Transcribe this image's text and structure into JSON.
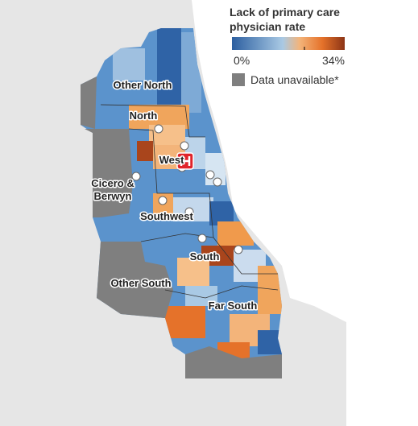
{
  "legend": {
    "title_lines": [
      "Lack of primary care",
      "physician rate"
    ],
    "min_label": "0%",
    "max_label": "34%",
    "unavailable": "Data unavailable*"
  },
  "regions": [
    {
      "lines": [
        "Other North"
      ]
    },
    {
      "lines": [
        "North"
      ]
    },
    {
      "lines": [
        "West"
      ]
    },
    {
      "lines": [
        "Cicero &",
        "Berwyn"
      ]
    },
    {
      "lines": [
        "Southwest"
      ]
    },
    {
      "lines": [
        "South"
      ]
    },
    {
      "lines": [
        "Other South"
      ]
    },
    {
      "lines": [
        "Far South"
      ]
    }
  ]
}
